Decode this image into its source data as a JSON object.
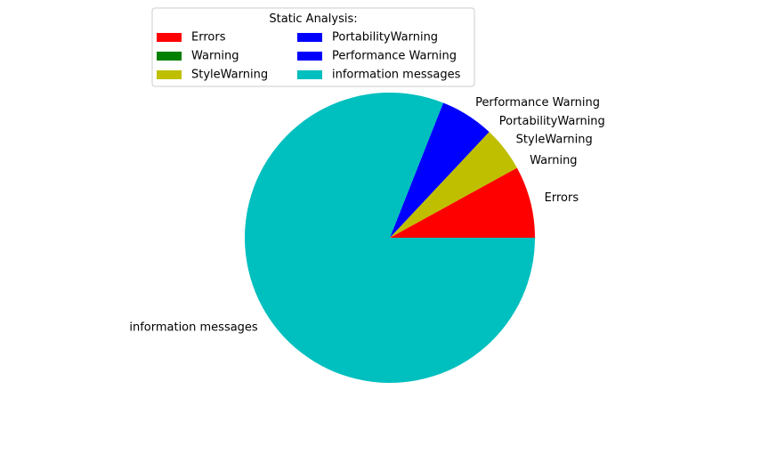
{
  "chart_data": {
    "type": "pie",
    "title": "",
    "categories": [
      "Errors",
      "Warning",
      "StyleWarning",
      "PortabilityWarning",
      "Performance Warning",
      "information messages"
    ],
    "values": [
      8,
      0,
      5,
      0,
      6,
      81
    ],
    "colors": [
      "#ff0000",
      "#008000",
      "#bfbf00",
      "#0000ff",
      "#0000ff",
      "#00bfbf"
    ],
    "start_angle": 0,
    "direction": "counterclockwise",
    "legend": {
      "title": "Static Analysis:",
      "location": "upper-center",
      "columns": 2,
      "entries": [
        "Errors",
        "Warning",
        "StyleWarning",
        "PortabilityWarning",
        "Performance Warning",
        "information messages"
      ]
    }
  }
}
